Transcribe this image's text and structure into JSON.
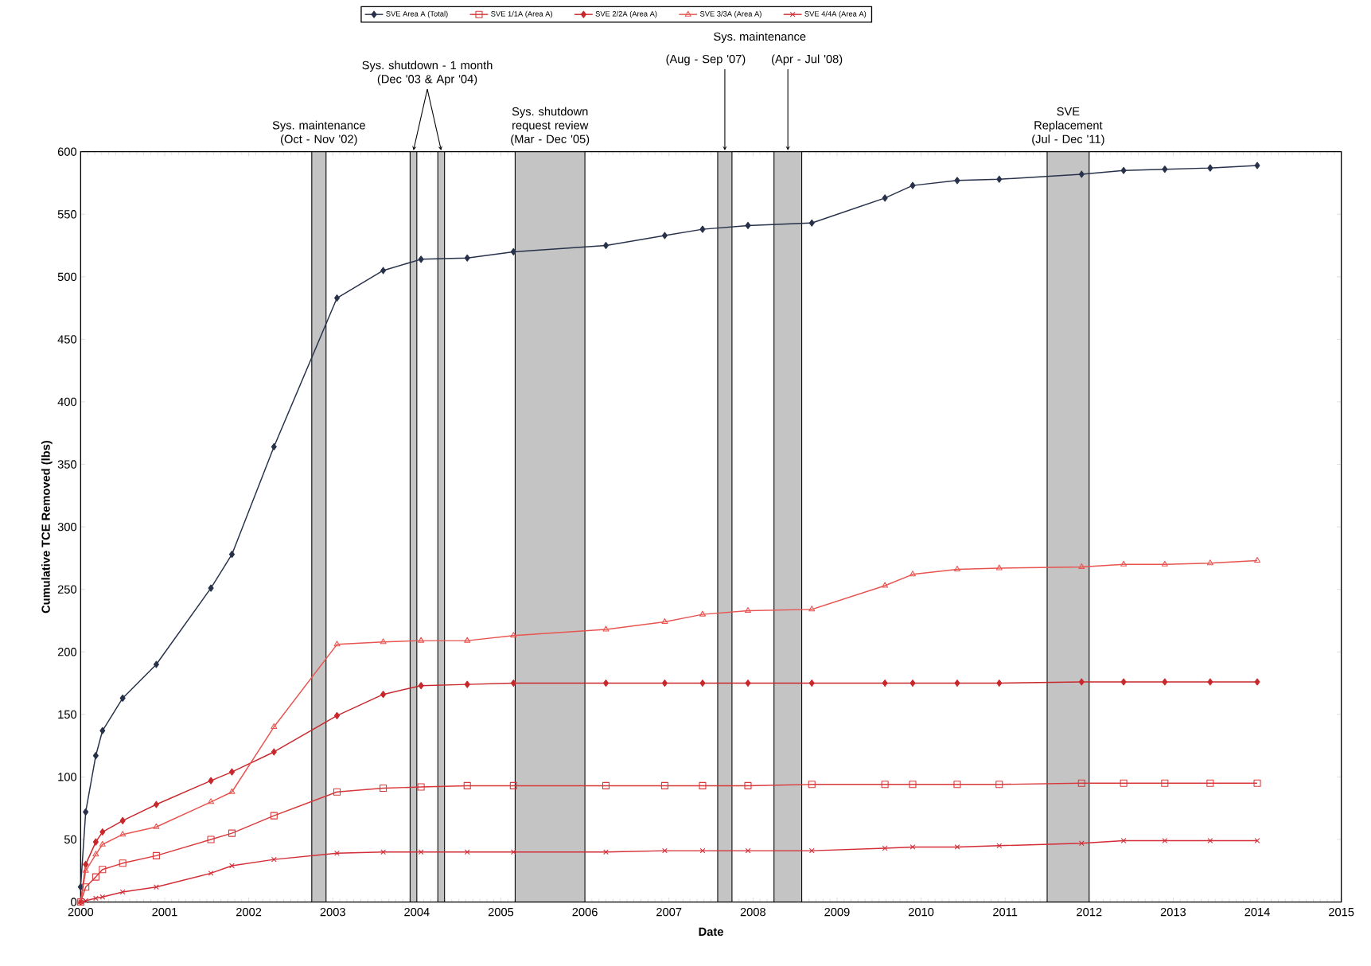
{
  "chart_data": {
    "type": "line",
    "xlabel": "Date",
    "ylabel": "Cumulative TCE Removed (lbs)",
    "xlim": [
      2000,
      2015
    ],
    "xticks": [
      2000,
      2001,
      2002,
      2003,
      2004,
      2005,
      2006,
      2007,
      2008,
      2009,
      2010,
      2011,
      2012,
      2013,
      2014,
      2015
    ],
    "ylim": [
      0,
      600
    ],
    "yticks": [
      0,
      50,
      100,
      150,
      200,
      250,
      300,
      350,
      400,
      450,
      500,
      550,
      600
    ],
    "legend": "top",
    "grid": false,
    "x": [
      2000.0,
      2000.06,
      2000.18,
      2000.26,
      2000.5,
      2000.9,
      2001.55,
      2001.8,
      2002.3,
      2003.05,
      2003.6,
      2004.05,
      2004.6,
      2005.15,
      2006.25,
      2006.95,
      2007.4,
      2007.94,
      2008.7,
      2009.57,
      2009.9,
      2010.43,
      2010.93,
      2011.91,
      2012.41,
      2012.9,
      2013.44,
      2014.0
    ],
    "series": [
      {
        "name": "SVE Area A (Total)",
        "color": "#27314a",
        "marker": "diamond",
        "values": [
          12,
          72,
          117,
          137,
          163,
          190,
          251,
          278,
          364,
          483,
          505,
          514,
          515,
          520,
          525,
          533,
          538,
          541,
          543,
          563,
          573,
          577,
          578,
          582,
          585,
          586,
          587,
          589
        ]
      },
      {
        "name": "SVE 1/1A (Area A)",
        "color": "#d9383a",
        "marker": "square",
        "values": [
          0,
          12,
          20,
          26,
          31,
          37,
          50,
          55,
          69,
          88,
          91,
          92,
          93,
          93,
          93,
          93,
          93,
          93,
          94,
          94,
          94,
          94,
          94,
          95,
          95,
          95,
          95,
          95
        ]
      },
      {
        "name": "SVE 2/2A (Area A)",
        "color": "#c8282c",
        "marker": "diamond",
        "values": [
          0,
          30,
          48,
          56,
          65,
          78,
          97,
          104,
          120,
          149,
          166,
          173,
          174,
          175,
          175,
          175,
          175,
          175,
          175,
          175,
          175,
          175,
          175,
          176,
          176,
          176,
          176,
          176
        ]
      },
      {
        "name": "SVE 3/3A (Area A)",
        "color": "#e85450",
        "marker": "triangle",
        "values": [
          0,
          25,
          38,
          46,
          54,
          60,
          80,
          88,
          140,
          206,
          208,
          209,
          209,
          213,
          218,
          224,
          230,
          233,
          234,
          253,
          262,
          266,
          267,
          268,
          270,
          270,
          271,
          273
        ]
      },
      {
        "name": "SVE 4/4A (Area A)",
        "color": "#d42c36",
        "marker": "cross",
        "values": [
          0,
          1,
          3,
          4,
          8,
          12,
          23,
          29,
          34,
          39,
          40,
          40,
          40,
          40,
          40,
          41,
          41,
          41,
          41,
          43,
          44,
          44,
          45,
          47,
          49,
          49,
          49,
          49
        ]
      }
    ],
    "bands": [
      {
        "axis": "x",
        "from": 2002.75,
        "to": 2002.92,
        "label": "Sys. maintenance (Oct - Nov '02)",
        "color": "#c4c4c4"
      },
      {
        "axis": "x",
        "from": 2003.92,
        "to": 2004.0,
        "label": "Sys. shutdown - 1 month (Dec '03 & Apr '04)",
        "color": "#c4c4c4"
      },
      {
        "axis": "x",
        "from": 2004.25,
        "to": 2004.33,
        "color": "#c4c4c4"
      },
      {
        "axis": "x",
        "from": 2005.17,
        "to": 2006.0,
        "label": "Sys. shutdown request review (Mar - Dec '05)",
        "color": "#c4c4c4"
      },
      {
        "axis": "x",
        "from": 2007.58,
        "to": 2007.75,
        "label": "(Aug - Sep '07)",
        "color": "#c4c4c4"
      },
      {
        "axis": "x",
        "from": 2008.25,
        "to": 2008.58,
        "label": "(Apr - Jul '08)",
        "color": "#c4c4c4"
      },
      {
        "axis": "x",
        "from": 2011.5,
        "to": 2012.0,
        "label": "SVE Replacement (Jul - Dec '11)",
        "color": "#c4c4c4"
      }
    ],
    "annotations": [
      "Sys. maintenance"
    ]
  }
}
